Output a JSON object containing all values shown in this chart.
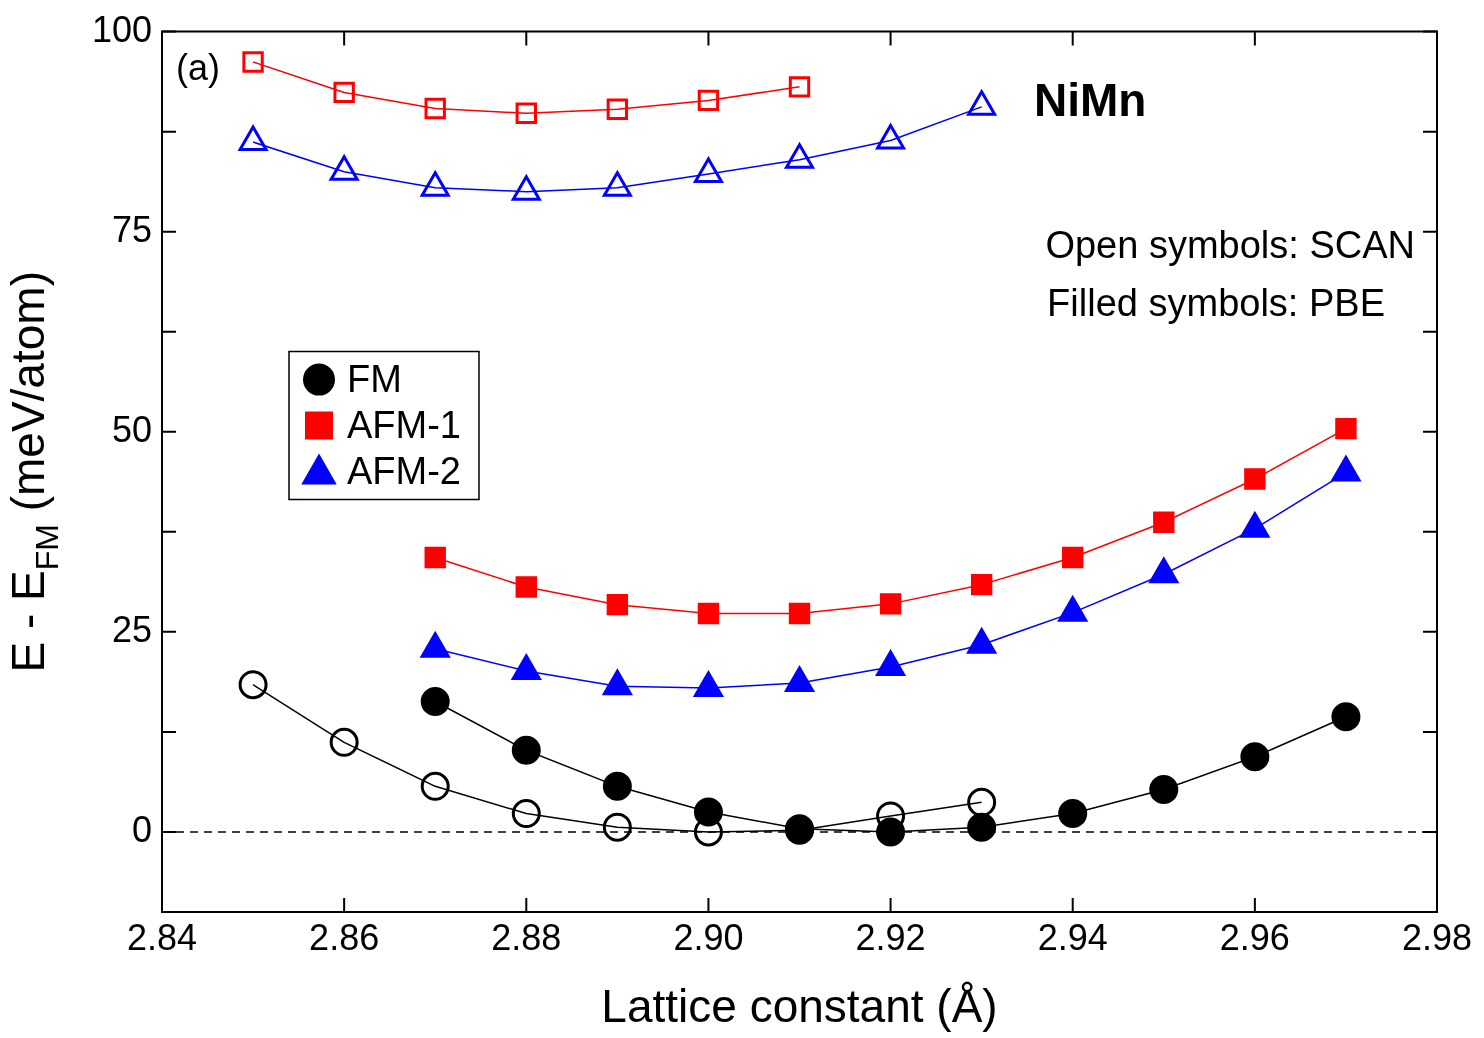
{
  "chart_data": {
    "type": "line",
    "xlabel": "Lattice constant (Å)",
    "ylabel": "E - E$_{FM}$ (meV/atom)",
    "annotations": [
      "(a)",
      "NiMn",
      "Open symbols: SCAN",
      "Filled symbols: PBE"
    ],
    "xlim": [
      2.84,
      2.98
    ],
    "xticks": [
      {
        "value": 2.84,
        "label": "2.84"
      },
      {
        "value": 2.86,
        "label": "2.86"
      },
      {
        "value": 2.88,
        "label": "2.88"
      },
      {
        "value": 2.9,
        "label": "2.90"
      },
      {
        "value": 2.92,
        "label": "2.92"
      },
      {
        "value": 2.94,
        "label": "2.94"
      },
      {
        "value": 2.96,
        "label": "2.96"
      },
      {
        "value": 2.98,
        "label": "2.98"
      }
    ],
    "ylim": [
      -10,
      100
    ],
    "yticks": [
      0,
      {
        "value": 12.5,
        "label": null
      },
      25,
      {
        "value": 37.5,
        "label": null
      },
      50,
      {
        "value": 62.5,
        "label": null
      },
      75,
      {
        "value": 87.5,
        "label": null
      },
      100
    ],
    "grid": false,
    "legend": "left",
    "ref_lines": [
      {
        "axis": "y",
        "value": 0,
        "color": "#000000",
        "line_style": "dashed"
      }
    ],
    "series": [
      {
        "name": "FM",
        "color": "#000000",
        "marker": "circle",
        "x": [
          2.87,
          2.88,
          2.89,
          2.9,
          2.91,
          2.92,
          2.93,
          2.94,
          2.95,
          2.96,
          2.97
        ],
        "values": [
          16.3,
          10.2,
          5.7,
          2.5,
          0.4,
          0,
          0.6,
          2.3,
          5.3,
          9.4,
          14.4
        ]
      },
      {
        "name": "AFM-1",
        "color": "#ff0000",
        "marker": "square",
        "x": [
          2.87,
          2.88,
          2.89,
          2.9,
          2.91,
          2.92,
          2.93,
          2.94,
          2.95,
          2.96,
          2.97
        ],
        "values": [
          34.3,
          30.6,
          28.4,
          27.3,
          27.3,
          28.5,
          30.9,
          34.3,
          38.7,
          44.1,
          50.4
        ]
      },
      {
        "name": "AFM-2",
        "color": "#0000ff",
        "marker": "triangle",
        "x": [
          2.87,
          2.88,
          2.89,
          2.9,
          2.91,
          2.92,
          2.93,
          2.94,
          2.95,
          2.96,
          2.97
        ],
        "values": [
          22.9,
          20.1,
          18.2,
          18.0,
          18.6,
          20.6,
          23.4,
          27.4,
          32.2,
          37.9,
          44.9
        ]
      },
      {
        "color": "#000000",
        "marker": "circle",
        "x": [
          2.85,
          2.86,
          2.87,
          2.88,
          2.89,
          2.9,
          2.91,
          2.92,
          2.93
        ],
        "values": [
          18.4,
          11.2,
          5.7,
          2.3,
          0.6,
          0,
          0.2,
          2.0,
          3.7
        ]
      },
      {
        "color": "#ff0000",
        "marker": "square",
        "x": [
          2.85,
          2.86,
          2.87,
          2.88,
          2.89,
          2.9,
          2.91
        ],
        "values": [
          96.2,
          92.4,
          90.4,
          89.8,
          90.3,
          91.4,
          93.1
        ]
      },
      {
        "color": "#0000ff",
        "marker": "triangle",
        "x": [
          2.85,
          2.86,
          2.87,
          2.88,
          2.89,
          2.9,
          2.91,
          2.92,
          2.93
        ],
        "values": [
          86.2,
          82.5,
          80.5,
          80.0,
          80.5,
          82.2,
          84.0,
          86.4,
          90.6
        ]
      }
    ]
  }
}
